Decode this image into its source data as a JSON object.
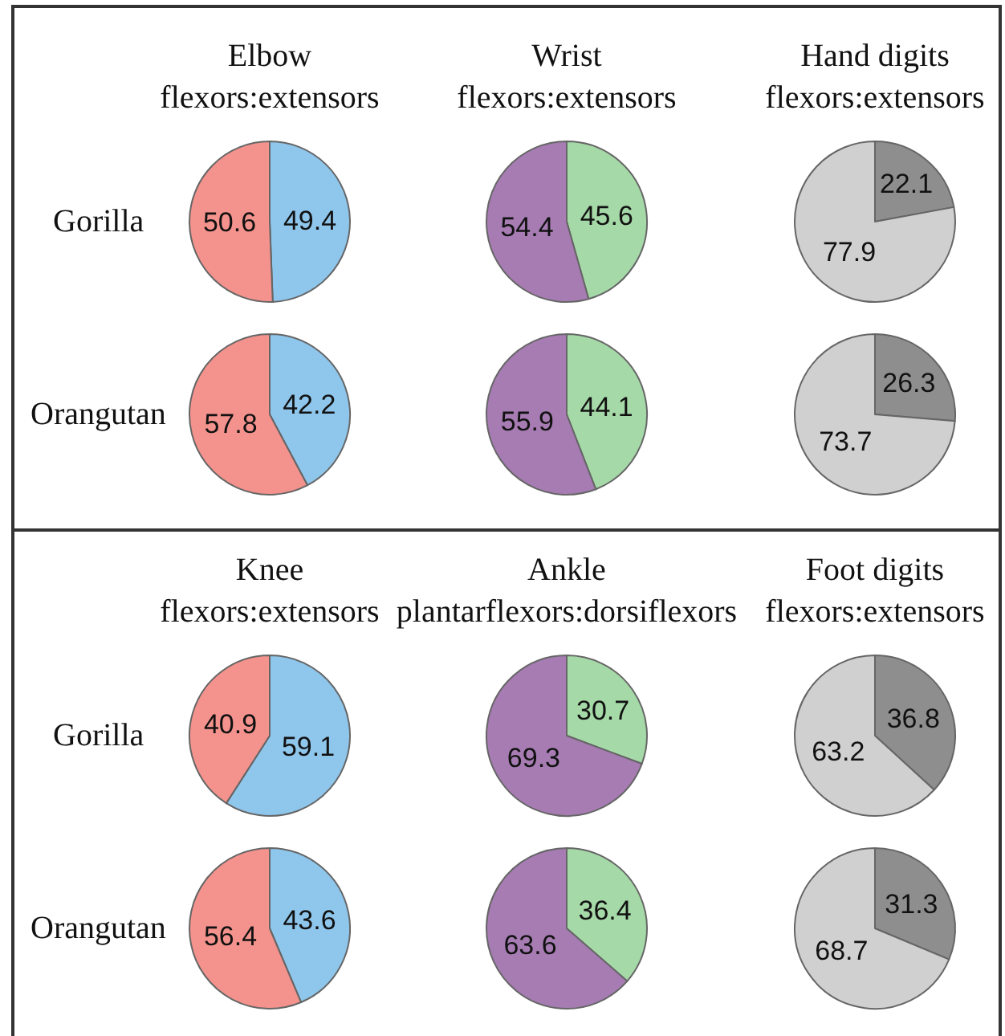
{
  "chart_data": [
    {
      "type": "pie",
      "title": "Elbow",
      "subtitle": "flexors:extensors",
      "ylabel": "Gorilla",
      "categories": [
        null,
        null
      ],
      "values": [
        49.4,
        50.6
      ],
      "colors": [
        "#8fc6ec",
        "#f4938d"
      ],
      "data_labels": true
    },
    {
      "type": "pie",
      "title": "Wrist",
      "subtitle": "flexors:extensors",
      "categories": [
        null,
        null
      ],
      "values": [
        45.6,
        54.4
      ],
      "colors": [
        "#a6d9a8",
        "#a67cb3"
      ],
      "data_labels": true
    },
    {
      "type": "pie",
      "title": "Hand digits",
      "subtitle": "flexors:extensors",
      "categories": [
        null,
        null
      ],
      "values": [
        22.1,
        77.9
      ],
      "colors": [
        "#8e8e8e",
        "#d0d0d0"
      ],
      "data_labels": true
    },
    {
      "type": "pie",
      "ylabel": "Orangutan",
      "categories": [
        null,
        null
      ],
      "values": [
        42.2,
        57.8
      ],
      "colors": [
        "#8fc6ec",
        "#f4938d"
      ],
      "data_labels": true
    },
    {
      "type": "pie",
      "categories": [
        null,
        null
      ],
      "values": [
        44.1,
        55.9
      ],
      "colors": [
        "#a6d9a8",
        "#a67cb3"
      ],
      "data_labels": true
    },
    {
      "type": "pie",
      "categories": [
        null,
        null
      ],
      "values": [
        26.3,
        73.7
      ],
      "colors": [
        "#8e8e8e",
        "#d0d0d0"
      ],
      "data_labels": true
    },
    {
      "type": "pie",
      "title": "Knee",
      "subtitle": "flexors:extensors",
      "ylabel": "Gorilla",
      "categories": [
        null,
        null
      ],
      "values": [
        59.1,
        40.9
      ],
      "colors": [
        "#8fc6ec",
        "#f4938d"
      ],
      "data_labels": true
    },
    {
      "type": "pie",
      "title": "Ankle",
      "subtitle": "plantarflexors:dorsiflexors",
      "categories": [
        null,
        null
      ],
      "values": [
        30.7,
        69.3
      ],
      "colors": [
        "#a6d9a8",
        "#a67cb3"
      ],
      "data_labels": true
    },
    {
      "type": "pie",
      "title": "Foot digits",
      "subtitle": "flexors:extensors",
      "categories": [
        null,
        null
      ],
      "values": [
        36.8,
        63.2
      ],
      "colors": [
        "#8e8e8e",
        "#d0d0d0"
      ],
      "data_labels": true
    },
    {
      "type": "pie",
      "ylabel": "Orangutan",
      "categories": [
        null,
        null
      ],
      "values": [
        43.6,
        56.4
      ],
      "colors": [
        "#8fc6ec",
        "#f4938d"
      ],
      "data_labels": true
    },
    {
      "type": "pie",
      "categories": [
        null,
        null
      ],
      "values": [
        36.4,
        63.6
      ],
      "colors": [
        "#a6d9a8",
        "#a67cb3"
      ],
      "data_labels": true
    },
    {
      "type": "pie",
      "categories": [
        null,
        null
      ],
      "values": [
        31.3,
        68.7
      ],
      "colors": [
        "#8e8e8e",
        "#d0d0d0"
      ],
      "data_labels": true
    }
  ]
}
